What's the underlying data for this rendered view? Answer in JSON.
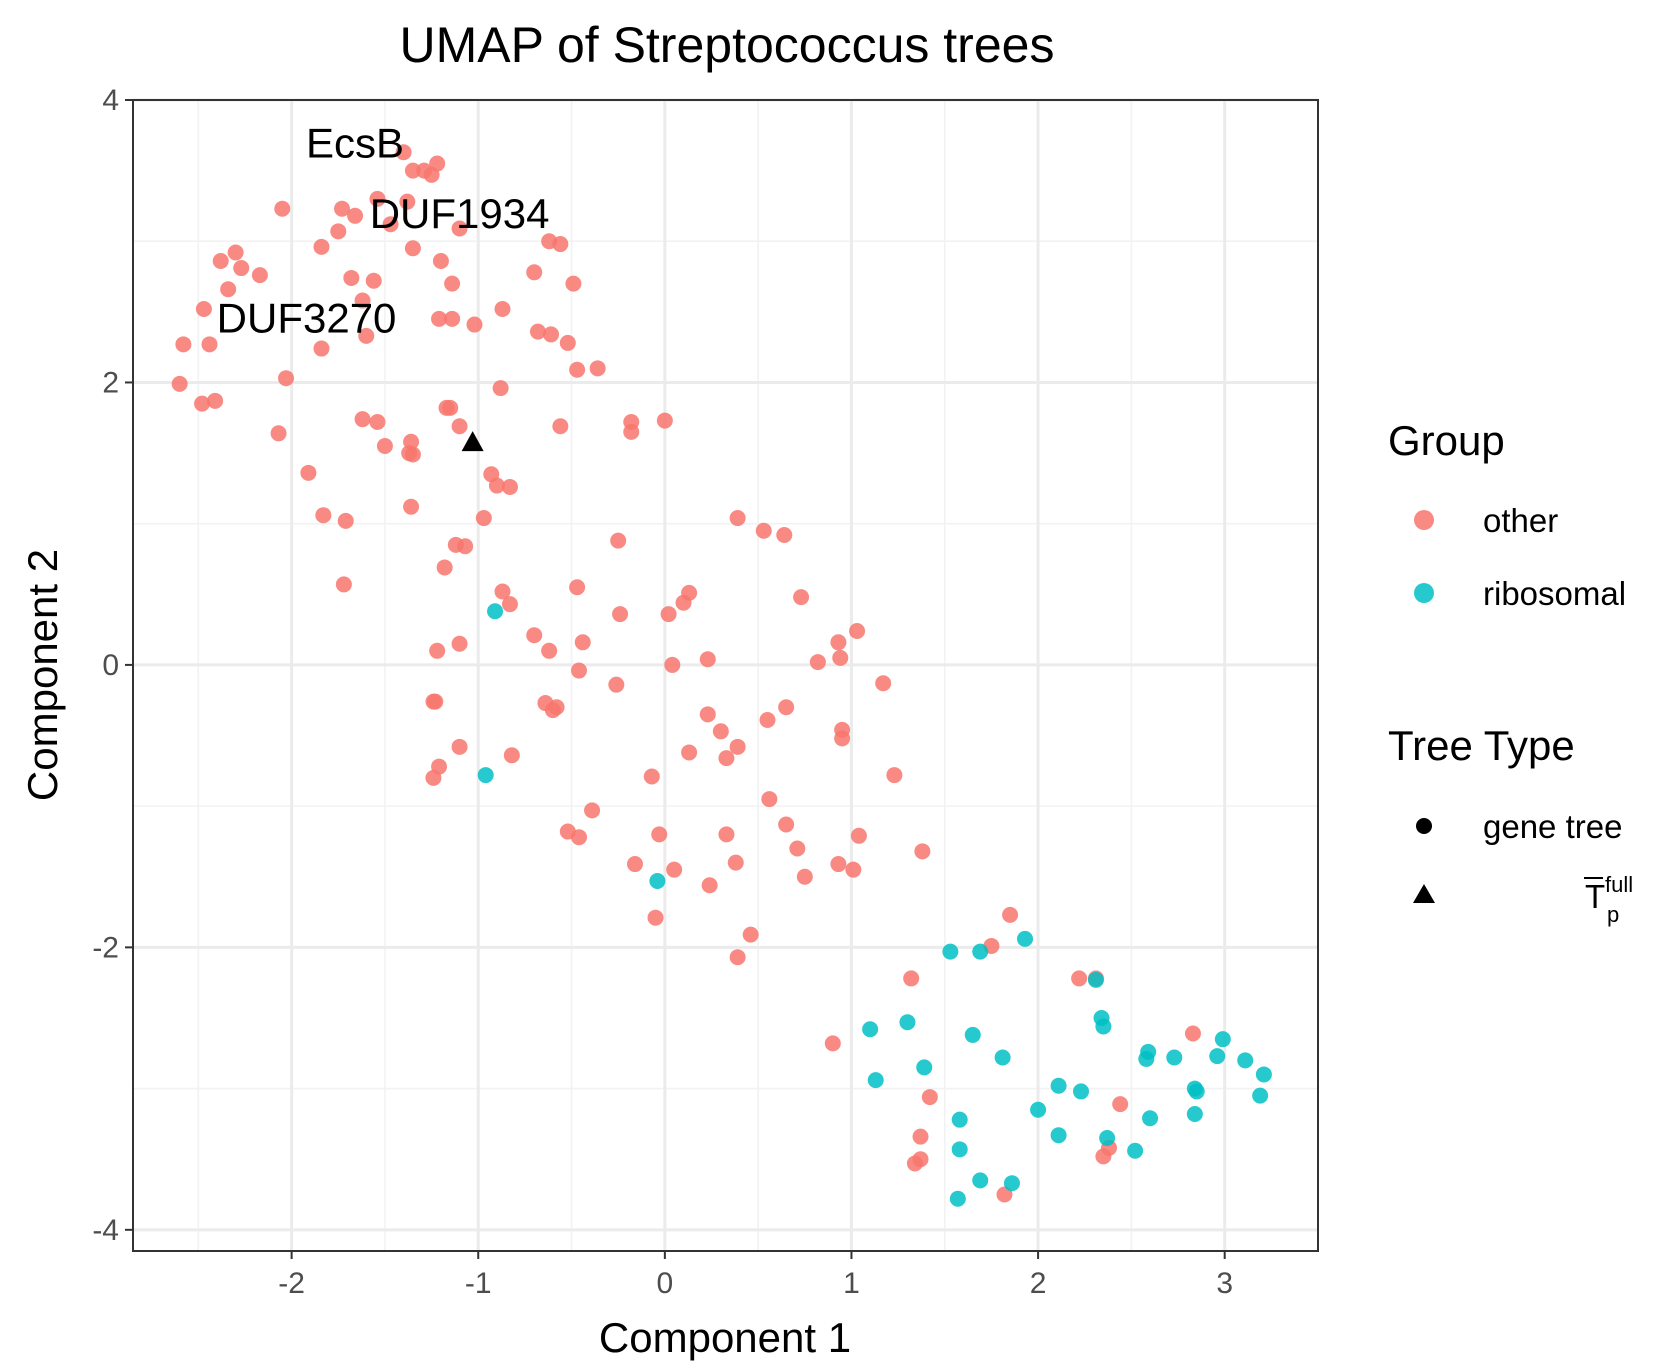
{
  "chart_data": {
    "type": "scatter",
    "title": "UMAP of Streptococcus trees",
    "xlabel": "Component 1",
    "ylabel": "Component 2",
    "xlim": [
      -2.85,
      3.5
    ],
    "ylim": [
      -4.15,
      4.0
    ],
    "x_ticks": [
      -2,
      -1,
      0,
      1,
      2,
      3
    ],
    "y_ticks": [
      -4,
      -2,
      0,
      2,
      4
    ],
    "x_tick_labels": [
      "-2",
      "-1",
      "0",
      "1",
      "2",
      "3"
    ],
    "y_tick_labels": [
      "-4",
      "-2",
      "0",
      "2",
      "4"
    ],
    "grid": true,
    "legend_position": "right",
    "colors": {
      "other": "#F8766D",
      "ribosomal": "#00BFC4",
      "reference": "#000000"
    },
    "legend": {
      "group_title": "Group",
      "group_items": [
        {
          "label": "other",
          "color": "#F8766D"
        },
        {
          "label": "ribosomal",
          "color": "#00BFC4"
        }
      ],
      "type_title": "Tree Type",
      "type_items": [
        {
          "label": "gene tree",
          "shape": "circle"
        },
        {
          "label_main": "T",
          "label_sup": "full",
          "label_sub": "p",
          "shape": "triangle"
        }
      ]
    },
    "annotations": [
      {
        "text": "EcsB",
        "x": -1.66,
        "y": 3.7
      },
      {
        "text": "DUF1934",
        "x": -1.1,
        "y": 3.2
      },
      {
        "text": "DUF3270",
        "x": -1.92,
        "y": 2.46
      }
    ],
    "series": [
      {
        "name": "other",
        "shape": "circle",
        "color": "#F8766D",
        "points": [
          [
            -1.4,
            3.63
          ],
          [
            -1.35,
            3.5
          ],
          [
            -1.29,
            3.5
          ],
          [
            -1.25,
            3.47
          ],
          [
            -1.22,
            3.55
          ],
          [
            -1.54,
            3.3
          ],
          [
            -1.38,
            3.28
          ],
          [
            -2.05,
            3.23
          ],
          [
            -1.73,
            3.23
          ],
          [
            -1.66,
            3.18
          ],
          [
            -1.75,
            3.07
          ],
          [
            -1.47,
            3.12
          ],
          [
            -1.1,
            3.09
          ],
          [
            -1.84,
            2.96
          ],
          [
            -1.35,
            2.95
          ],
          [
            -1.2,
            2.86
          ],
          [
            -0.62,
            3.0
          ],
          [
            -0.56,
            2.98
          ],
          [
            -2.3,
            2.92
          ],
          [
            -2.38,
            2.86
          ],
          [
            -2.27,
            2.81
          ],
          [
            -2.17,
            2.76
          ],
          [
            -1.68,
            2.74
          ],
          [
            -1.56,
            2.72
          ],
          [
            -1.14,
            2.7
          ],
          [
            -0.7,
            2.78
          ],
          [
            -0.49,
            2.7
          ],
          [
            -2.34,
            2.66
          ],
          [
            -1.62,
            2.58
          ],
          [
            -2.47,
            2.52
          ],
          [
            -0.87,
            2.52
          ],
          [
            -1.21,
            2.45
          ],
          [
            -1.14,
            2.45
          ],
          [
            -1.02,
            2.41
          ],
          [
            -2.58,
            2.27
          ],
          [
            -2.44,
            2.27
          ],
          [
            -1.6,
            2.33
          ],
          [
            -0.68,
            2.36
          ],
          [
            -0.61,
            2.34
          ],
          [
            -0.52,
            2.28
          ],
          [
            -1.84,
            2.24
          ],
          [
            -0.47,
            2.09
          ],
          [
            -0.36,
            2.1
          ],
          [
            -2.6,
            1.99
          ],
          [
            -2.03,
            2.03
          ],
          [
            -0.88,
            1.96
          ],
          [
            -2.48,
            1.85
          ],
          [
            -2.41,
            1.87
          ],
          [
            -1.17,
            1.82
          ],
          [
            -1.15,
            1.82
          ],
          [
            -1.62,
            1.74
          ],
          [
            -1.54,
            1.72
          ],
          [
            -1.1,
            1.69
          ],
          [
            -0.56,
            1.69
          ],
          [
            -0.18,
            1.72
          ],
          [
            -0.18,
            1.65
          ],
          [
            0.0,
            1.73
          ],
          [
            -2.07,
            1.64
          ],
          [
            -1.36,
            1.58
          ],
          [
            -1.5,
            1.55
          ],
          [
            -1.37,
            1.5
          ],
          [
            -1.35,
            1.49
          ],
          [
            -1.91,
            1.36
          ],
          [
            -0.93,
            1.35
          ],
          [
            -0.9,
            1.27
          ],
          [
            -0.83,
            1.26
          ],
          [
            -1.36,
            1.12
          ],
          [
            -1.83,
            1.06
          ],
          [
            -1.71,
            1.02
          ],
          [
            -0.97,
            1.04
          ],
          [
            0.39,
            1.04
          ],
          [
            0.53,
            0.95
          ],
          [
            0.64,
            0.92
          ],
          [
            -0.25,
            0.88
          ],
          [
            -1.12,
            0.85
          ],
          [
            -1.07,
            0.84
          ],
          [
            -1.18,
            0.69
          ],
          [
            -1.72,
            0.57
          ],
          [
            -0.87,
            0.52
          ],
          [
            -0.83,
            0.43
          ],
          [
            -0.47,
            0.55
          ],
          [
            0.13,
            0.51
          ],
          [
            0.1,
            0.44
          ],
          [
            0.73,
            0.48
          ],
          [
            -0.24,
            0.36
          ],
          [
            0.02,
            0.36
          ],
          [
            -0.7,
            0.21
          ],
          [
            -0.44,
            0.16
          ],
          [
            0.93,
            0.16
          ],
          [
            1.03,
            0.24
          ],
          [
            -1.22,
            0.1
          ],
          [
            -1.1,
            0.15
          ],
          [
            -0.62,
            0.1
          ],
          [
            0.23,
            0.04
          ],
          [
            0.94,
            0.05
          ],
          [
            0.82,
            0.02
          ],
          [
            0.04,
            0.0
          ],
          [
            -0.46,
            -0.04
          ],
          [
            -0.26,
            -0.14
          ],
          [
            1.17,
            -0.13
          ],
          [
            -1.24,
            -0.26
          ],
          [
            -1.23,
            -0.26
          ],
          [
            -0.64,
            -0.27
          ],
          [
            -0.58,
            -0.3
          ],
          [
            -0.6,
            -0.32
          ],
          [
            0.23,
            -0.35
          ],
          [
            0.55,
            -0.39
          ],
          [
            0.65,
            -0.3
          ],
          [
            0.3,
            -0.47
          ],
          [
            0.95,
            -0.46
          ],
          [
            0.95,
            -0.52
          ],
          [
            -1.1,
            -0.58
          ],
          [
            0.39,
            -0.58
          ],
          [
            0.13,
            -0.62
          ],
          [
            -0.82,
            -0.64
          ],
          [
            0.33,
            -0.66
          ],
          [
            -1.21,
            -0.72
          ],
          [
            -1.24,
            -0.8
          ],
          [
            -0.07,
            -0.79
          ],
          [
            1.23,
            -0.78
          ],
          [
            0.56,
            -0.95
          ],
          [
            -0.39,
            -1.03
          ],
          [
            0.65,
            -1.13
          ],
          [
            -0.52,
            -1.18
          ],
          [
            -0.46,
            -1.22
          ],
          [
            -0.03,
            -1.2
          ],
          [
            0.33,
            -1.2
          ],
          [
            1.04,
            -1.21
          ],
          [
            0.71,
            -1.3
          ],
          [
            1.38,
            -1.32
          ],
          [
            -0.16,
            -1.41
          ],
          [
            0.38,
            -1.4
          ],
          [
            0.93,
            -1.41
          ],
          [
            1.01,
            -1.45
          ],
          [
            0.05,
            -1.45
          ],
          [
            0.75,
            -1.5
          ],
          [
            0.24,
            -1.56
          ],
          [
            -0.05,
            -1.79
          ],
          [
            1.85,
            -1.77
          ],
          [
            0.46,
            -1.91
          ],
          [
            1.75,
            -1.99
          ],
          [
            0.39,
            -2.07
          ],
          [
            1.32,
            -2.22
          ],
          [
            2.22,
            -2.22
          ],
          [
            2.31,
            -2.22
          ],
          [
            0.9,
            -2.68
          ],
          [
            2.83,
            -2.61
          ],
          [
            1.42,
            -3.06
          ],
          [
            2.44,
            -3.11
          ],
          [
            1.37,
            -3.34
          ],
          [
            1.37,
            -3.5
          ],
          [
            1.34,
            -3.53
          ],
          [
            2.35,
            -3.48
          ],
          [
            2.38,
            -3.42
          ],
          [
            1.82,
            -3.75
          ]
        ]
      },
      {
        "name": "ribosomal",
        "shape": "circle",
        "color": "#00BFC4",
        "points": [
          [
            -0.91,
            0.38
          ],
          [
            -0.96,
            -0.78
          ],
          [
            -0.04,
            -1.53
          ],
          [
            1.93,
            -1.94
          ],
          [
            1.53,
            -2.03
          ],
          [
            1.69,
            -2.03
          ],
          [
            2.31,
            -2.23
          ],
          [
            2.34,
            -2.5
          ],
          [
            2.35,
            -2.56
          ],
          [
            1.3,
            -2.53
          ],
          [
            1.1,
            -2.58
          ],
          [
            1.65,
            -2.62
          ],
          [
            1.81,
            -2.78
          ],
          [
            2.99,
            -2.65
          ],
          [
            2.59,
            -2.74
          ],
          [
            2.58,
            -2.79
          ],
          [
            2.73,
            -2.78
          ],
          [
            2.96,
            -2.77
          ],
          [
            3.11,
            -2.8
          ],
          [
            3.21,
            -2.9
          ],
          [
            1.39,
            -2.85
          ],
          [
            1.13,
            -2.94
          ],
          [
            2.11,
            -2.98
          ],
          [
            2.23,
            -3.02
          ],
          [
            2.84,
            -3.0
          ],
          [
            2.85,
            -3.02
          ],
          [
            3.19,
            -3.05
          ],
          [
            2.0,
            -3.15
          ],
          [
            2.6,
            -3.21
          ],
          [
            2.84,
            -3.18
          ],
          [
            1.58,
            -3.22
          ],
          [
            2.11,
            -3.33
          ],
          [
            2.37,
            -3.35
          ],
          [
            1.58,
            -3.43
          ],
          [
            2.52,
            -3.44
          ],
          [
            1.69,
            -3.65
          ],
          [
            1.86,
            -3.67
          ],
          [
            1.57,
            -3.78
          ]
        ]
      },
      {
        "name": "reference",
        "shape": "triangle",
        "color": "#000000",
        "points": [
          [
            -1.03,
            1.57
          ]
        ]
      }
    ]
  }
}
